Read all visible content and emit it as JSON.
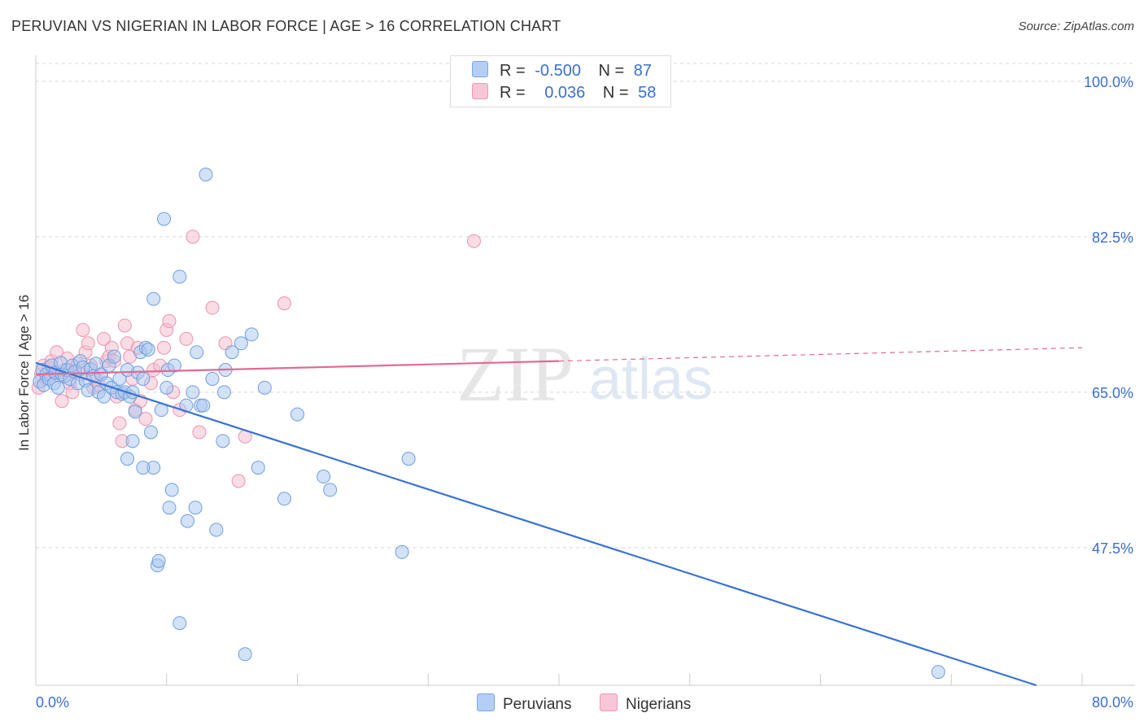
{
  "title": "PERUVIAN VS NIGERIAN IN LABOR FORCE | AGE > 16 CORRELATION CHART",
  "source": "Source: ZipAtlas.com",
  "watermark": {
    "zip": "ZIP",
    "atlas": "atlas"
  },
  "legend_top": {
    "rows": [
      {
        "r_label": "R =",
        "r_value": "-0.500",
        "n_label": "N =",
        "n_value": "87"
      },
      {
        "r_label": "R =",
        "r_value": "0.036",
        "n_label": "N =",
        "n_value": "58"
      }
    ]
  },
  "colors": {
    "peruvian_fill": "#a8c6f0",
    "peruvian_stroke": "#6f9fe0",
    "peruvian_line": "#3a74d4",
    "nigerian_fill": "#f6c0d0",
    "nigerian_stroke": "#ec94b0",
    "nigerian_line": "#e06a94",
    "tick_label": "#3a6fd0",
    "grid": "#d8d8d8"
  },
  "chart_data": {
    "type": "scatter",
    "title": "PERUVIAN VS NIGERIAN IN LABOR FORCE | AGE > 16 CORRELATION CHART",
    "xlabel": "",
    "ylabel": "In Labor Force | Age > 16",
    "xlim": [
      0,
      80
    ],
    "ylim": [
      32,
      102
    ],
    "x_tick_labels": [
      "0.0%",
      "80.0%"
    ],
    "y_ticks": [
      100.0,
      82.5,
      65.0,
      47.5
    ],
    "y_tick_labels": [
      "100.0%",
      "82.5%",
      "65.0%",
      "47.5%"
    ],
    "legend": [
      "Peruvians",
      "Nigerians"
    ],
    "series": [
      {
        "name": "Peruvians",
        "r": -0.5,
        "n": 87,
        "trend": {
          "x0": 0,
          "y0": 68.3,
          "x1": 76.5,
          "y1": 32
        },
        "points": [
          [
            0.3,
            66.2
          ],
          [
            0.5,
            67.5
          ],
          [
            0.6,
            65.8
          ],
          [
            0.8,
            67.0
          ],
          [
            1.0,
            66.5
          ],
          [
            1.2,
            68.0
          ],
          [
            1.4,
            66.0
          ],
          [
            1.5,
            67.2
          ],
          [
            1.7,
            65.5
          ],
          [
            1.9,
            68.3
          ],
          [
            2.0,
            67.0
          ],
          [
            2.2,
            66.8
          ],
          [
            2.4,
            67.5
          ],
          [
            2.6,
            66.5
          ],
          [
            2.8,
            68.0
          ],
          [
            3.0,
            67.3
          ],
          [
            3.2,
            66.0
          ],
          [
            3.4,
            68.5
          ],
          [
            3.6,
            67.8
          ],
          [
            3.8,
            66.3
          ],
          [
            4.0,
            65.2
          ],
          [
            4.2,
            67.6
          ],
          [
            4.4,
            66.8
          ],
          [
            4.6,
            68.2
          ],
          [
            4.8,
            65.0
          ],
          [
            5.0,
            67.0
          ],
          [
            5.2,
            64.5
          ],
          [
            5.4,
            66.0
          ],
          [
            5.6,
            68.0
          ],
          [
            5.8,
            65.5
          ],
          [
            6.0,
            69.0
          ],
          [
            6.2,
            65.0
          ],
          [
            6.4,
            66.5
          ],
          [
            6.6,
            64.8
          ],
          [
            6.8,
            65.0
          ],
          [
            7.0,
            67.5
          ],
          [
            7.2,
            64.5
          ],
          [
            7.4,
            65.0
          ],
          [
            7.6,
            62.8
          ],
          [
            7.8,
            67.2
          ],
          [
            8.0,
            69.5
          ],
          [
            8.2,
            66.5
          ],
          [
            8.4,
            70.0
          ],
          [
            8.6,
            69.8
          ],
          [
            8.8,
            60.5
          ],
          [
            9.0,
            75.5
          ],
          [
            9.3,
            45.5
          ],
          [
            9.4,
            46.0
          ],
          [
            9.6,
            63.0
          ],
          [
            9.0,
            56.5
          ],
          [
            8.2,
            56.5
          ],
          [
            7.4,
            59.5
          ],
          [
            7.0,
            57.5
          ],
          [
            9.8,
            84.5
          ],
          [
            10.1,
            67.5
          ],
          [
            10.0,
            65.5
          ],
          [
            10.4,
            54.0
          ],
          [
            10.2,
            52.0
          ],
          [
            10.6,
            68.0
          ],
          [
            11.0,
            39.0
          ],
          [
            11.0,
            78.0
          ],
          [
            11.5,
            63.5
          ],
          [
            11.6,
            50.5
          ],
          [
            12.0,
            65.0
          ],
          [
            12.3,
            69.5
          ],
          [
            12.6,
            63.5
          ],
          [
            12.2,
            52.0
          ],
          [
            12.8,
            63.5
          ],
          [
            13.0,
            89.5
          ],
          [
            13.5,
            66.5
          ],
          [
            13.8,
            49.5
          ],
          [
            14.3,
            59.5
          ],
          [
            14.5,
            67.5
          ],
          [
            14.4,
            65.0
          ],
          [
            15.0,
            69.5
          ],
          [
            15.7,
            70.5
          ],
          [
            16.5,
            71.5
          ],
          [
            16.0,
            35.5
          ],
          [
            17.0,
            56.5
          ],
          [
            17.5,
            65.5
          ],
          [
            19.0,
            53.0
          ],
          [
            20.0,
            62.5
          ],
          [
            22.0,
            55.5
          ],
          [
            22.5,
            54.0
          ],
          [
            28.5,
            57.5
          ],
          [
            28.0,
            47.0
          ],
          [
            69.0,
            33.5
          ]
        ]
      },
      {
        "name": "Nigerians",
        "r": 0.036,
        "n": 58,
        "trend": {
          "x0": 0,
          "y0": 67.0,
          "x1": 40,
          "y1": 68.5,
          "x_dash_end": 80,
          "y_dash_end": 70.0
        },
        "points": [
          [
            0.2,
            65.5
          ],
          [
            0.4,
            67.0
          ],
          [
            0.6,
            68.0
          ],
          [
            0.8,
            66.5
          ],
          [
            1.0,
            67.8
          ],
          [
            1.2,
            68.5
          ],
          [
            1.4,
            67.2
          ],
          [
            1.6,
            69.5
          ],
          [
            1.8,
            66.8
          ],
          [
            2.0,
            64.0
          ],
          [
            2.2,
            67.5
          ],
          [
            2.4,
            68.8
          ],
          [
            2.6,
            66.0
          ],
          [
            2.8,
            65.0
          ],
          [
            3.0,
            67.5
          ],
          [
            3.2,
            68.2
          ],
          [
            3.4,
            67.0
          ],
          [
            3.6,
            72.0
          ],
          [
            3.8,
            69.5
          ],
          [
            4.0,
            70.5
          ],
          [
            4.2,
            68.0
          ],
          [
            4.4,
            65.5
          ],
          [
            4.6,
            66.5
          ],
          [
            4.8,
            65.8
          ],
          [
            5.0,
            67.0
          ],
          [
            5.2,
            71.0
          ],
          [
            5.4,
            68.5
          ],
          [
            5.6,
            69.0
          ],
          [
            5.8,
            70.0
          ],
          [
            6.0,
            68.5
          ],
          [
            6.2,
            64.5
          ],
          [
            6.4,
            61.5
          ],
          [
            6.6,
            59.5
          ],
          [
            6.8,
            72.5
          ],
          [
            7.0,
            70.5
          ],
          [
            7.2,
            69.0
          ],
          [
            7.4,
            66.5
          ],
          [
            7.6,
            63.0
          ],
          [
            7.8,
            70.0
          ],
          [
            8.0,
            64.0
          ],
          [
            8.4,
            62.0
          ],
          [
            8.8,
            66.0
          ],
          [
            9.0,
            67.5
          ],
          [
            9.5,
            68.0
          ],
          [
            9.8,
            70.0
          ],
          [
            10.0,
            72.0
          ],
          [
            10.2,
            73.0
          ],
          [
            10.5,
            65.0
          ],
          [
            11.0,
            63.0
          ],
          [
            11.5,
            71.0
          ],
          [
            12.0,
            82.5
          ],
          [
            12.5,
            60.5
          ],
          [
            13.5,
            74.5
          ],
          [
            14.5,
            70.5
          ],
          [
            15.5,
            55.0
          ],
          [
            16.0,
            60.0
          ],
          [
            19.0,
            75.0
          ],
          [
            33.5,
            82.0
          ]
        ]
      }
    ]
  }
}
